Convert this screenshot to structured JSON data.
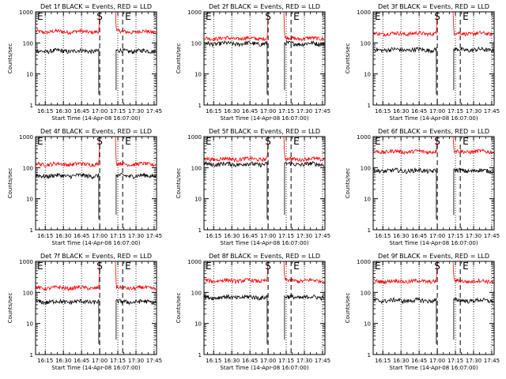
{
  "figure": {
    "y_axis_label": "Counts/sec",
    "x_axis_label": "Start Time (14-Apr-08 16:07:00)",
    "marker_start_label": "S",
    "marker_end_label": "E",
    "marker_left_label": "E"
  },
  "colors": {
    "events": "#000000",
    "lld": "#ff0000",
    "axes": "#000000"
  },
  "chart_data": [
    {
      "type": "line",
      "title": "Det 1f BLACK = Events, RED = LLD",
      "xlabel": "Start Time (14-Apr-08 16:07:00)",
      "ylabel": "Counts/sec",
      "yscale": "log",
      "ylim": [
        1,
        1000
      ],
      "xlim": [
        "16:07",
        "17:47"
      ],
      "x_ticks": [
        "16:15",
        "16:30",
        "16:45",
        "17:00",
        "17:15",
        "17:30",
        "17:45"
      ],
      "y_ticks": [
        "1",
        "10",
        "100",
        "1000"
      ],
      "dotted_lines": [
        "16:15",
        "16:30",
        "16:45",
        "17:15",
        "17:30",
        "17:45"
      ],
      "dashed_lines": [
        "17:00",
        "17:19"
      ],
      "series": [
        {
          "name": "BLACK = Events",
          "approx_level": 55,
          "color": "#000000"
        },
        {
          "name": "RED = LLD",
          "approx_level": 230,
          "color": "#ff0000"
        }
      ]
    },
    {
      "type": "line",
      "title": "Det 2f BLACK = Events, RED = LLD",
      "xlabel": "Start Time (14-Apr-08 16:07:00)",
      "ylabel": "Counts/sec",
      "yscale": "log",
      "ylim": [
        1,
        1000
      ],
      "xlim": [
        "16:07",
        "17:47"
      ],
      "x_ticks": [
        "16:15",
        "16:30",
        "16:45",
        "17:00",
        "17:15",
        "17:30",
        "17:45"
      ],
      "y_ticks": [
        "1",
        "10",
        "100",
        "1000"
      ],
      "dotted_lines": [
        "16:15",
        "16:30",
        "16:45",
        "17:15",
        "17:30",
        "17:45"
      ],
      "dashed_lines": [
        "17:00",
        "17:19"
      ],
      "series": [
        {
          "name": "BLACK = Events",
          "approx_level": 95,
          "color": "#000000"
        },
        {
          "name": "RED = LLD",
          "approx_level": 140,
          "color": "#ff0000"
        }
      ]
    },
    {
      "type": "line",
      "title": "Det 3f BLACK = Events, RED = LLD",
      "xlabel": "Start Time (14-Apr-08 16:07:00)",
      "ylabel": "Counts/sec",
      "yscale": "log",
      "ylim": [
        1,
        1000
      ],
      "xlim": [
        "16:07",
        "17:47"
      ],
      "x_ticks": [
        "16:15",
        "16:30",
        "16:45",
        "17:00",
        "17:15",
        "17:30",
        "17:45"
      ],
      "y_ticks": [
        "1",
        "10",
        "100",
        "1000"
      ],
      "dotted_lines": [
        "16:15",
        "16:30",
        "16:45",
        "17:15",
        "17:30",
        "17:45"
      ],
      "dashed_lines": [
        "17:00",
        "17:19"
      ],
      "series": [
        {
          "name": "BLACK = Events",
          "approx_level": 60,
          "color": "#000000"
        },
        {
          "name": "RED = LLD",
          "approx_level": 200,
          "color": "#ff0000"
        }
      ]
    },
    {
      "type": "line",
      "title": "Det 4f BLACK = Events, RED = LLD",
      "xlabel": "Start Time (14-Apr-08 16:07:00)",
      "ylabel": "Counts/sec",
      "yscale": "log",
      "ylim": [
        1,
        1000
      ],
      "xlim": [
        "16:07",
        "17:47"
      ],
      "x_ticks": [
        "16:15",
        "16:30",
        "16:45",
        "17:00",
        "17:15",
        "17:30",
        "17:45"
      ],
      "y_ticks": [
        "1",
        "10",
        "100",
        "1000"
      ],
      "dotted_lines": [
        "16:15",
        "16:30",
        "16:45",
        "17:15",
        "17:30",
        "17:45"
      ],
      "dashed_lines": [
        "17:00",
        "17:19"
      ],
      "series": [
        {
          "name": "BLACK = Events",
          "approx_level": 55,
          "color": "#000000"
        },
        {
          "name": "RED = LLD",
          "approx_level": 130,
          "color": "#ff0000"
        }
      ]
    },
    {
      "type": "line",
      "title": "Det 5f BLACK = Events, RED = LLD",
      "xlabel": "Start Time (14-Apr-08 16:07:00)",
      "ylabel": "Counts/sec",
      "yscale": "log",
      "ylim": [
        1,
        1000
      ],
      "xlim": [
        "16:07",
        "17:47"
      ],
      "x_ticks": [
        "16:15",
        "16:30",
        "16:45",
        "17:00",
        "17:15",
        "17:30",
        "17:45"
      ],
      "y_ticks": [
        "1",
        "10",
        "100",
        "1000"
      ],
      "dotted_lines": [
        "16:15",
        "16:30",
        "16:45",
        "17:15",
        "17:30",
        "17:45"
      ],
      "dashed_lines": [
        "17:00",
        "17:19"
      ],
      "series": [
        {
          "name": "BLACK = Events",
          "approx_level": 130,
          "color": "#000000"
        },
        {
          "name": "RED = LLD",
          "approx_level": 190,
          "color": "#ff0000"
        }
      ]
    },
    {
      "type": "line",
      "title": "Det 6f BLACK = Events, RED = LLD",
      "xlabel": "Start Time (14-Apr-08 16:07:00)",
      "ylabel": "Counts/sec",
      "yscale": "log",
      "ylim": [
        1,
        1000
      ],
      "xlim": [
        "16:07",
        "17:47"
      ],
      "x_ticks": [
        "16:15",
        "16:30",
        "16:45",
        "17:00",
        "17:15",
        "17:30",
        "17:45"
      ],
      "y_ticks": [
        "1",
        "10",
        "100",
        "1000"
      ],
      "dotted_lines": [
        "16:15",
        "16:30",
        "16:45",
        "17:15",
        "17:30",
        "17:45"
      ],
      "dashed_lines": [
        "17:00",
        "17:19"
      ],
      "series": [
        {
          "name": "BLACK = Events",
          "approx_level": 80,
          "color": "#000000"
        },
        {
          "name": "RED = LLD",
          "approx_level": 330,
          "color": "#ff0000"
        }
      ]
    },
    {
      "type": "line",
      "title": "Det 7f BLACK = Events, RED = LLD",
      "xlabel": "Start Time (14-Apr-08 16:07:00)",
      "ylabel": "Counts/sec",
      "yscale": "log",
      "ylim": [
        1,
        1000
      ],
      "xlim": [
        "16:07",
        "17:47"
      ],
      "x_ticks": [
        "16:15",
        "16:30",
        "16:45",
        "17:00",
        "17:15",
        "17:30",
        "17:45"
      ],
      "y_ticks": [
        "1",
        "10",
        "100",
        "1000"
      ],
      "dotted_lines": [
        "16:15",
        "16:30",
        "16:45",
        "17:15",
        "17:30",
        "17:45"
      ],
      "dashed_lines": [
        "17:00",
        "17:19"
      ],
      "series": [
        {
          "name": "BLACK = Events",
          "approx_level": 50,
          "color": "#000000"
        },
        {
          "name": "RED = LLD",
          "approx_level": 140,
          "color": "#ff0000"
        }
      ]
    },
    {
      "type": "line",
      "title": "Det 8f BLACK = Events, RED = LLD",
      "xlabel": "Start Time (14-Apr-08 16:07:00)",
      "ylabel": "Counts/sec",
      "yscale": "log",
      "ylim": [
        1,
        1000
      ],
      "xlim": [
        "16:07",
        "17:47"
      ],
      "x_ticks": [
        "16:15",
        "16:30",
        "16:45",
        "17:00",
        "17:15",
        "17:30",
        "17:45"
      ],
      "y_ticks": [
        "1",
        "10",
        "100",
        "1000"
      ],
      "dotted_lines": [
        "16:15",
        "16:30",
        "16:45",
        "17:15",
        "17:30",
        "17:45"
      ],
      "dashed_lines": [
        "17:00",
        "17:19"
      ],
      "series": [
        {
          "name": "BLACK = Events",
          "approx_level": 70,
          "color": "#000000"
        },
        {
          "name": "RED = LLD",
          "approx_level": 240,
          "color": "#ff0000"
        }
      ]
    },
    {
      "type": "line",
      "title": "Det 9f BLACK = Events, RED = LLD",
      "xlabel": "Start Time (14-Apr-08 16:07:00)",
      "ylabel": "Counts/sec",
      "yscale": "log",
      "ylim": [
        1,
        1000
      ],
      "xlim": [
        "16:07",
        "17:47"
      ],
      "x_ticks": [
        "16:15",
        "16:30",
        "16:45",
        "17:00",
        "17:15",
        "17:30",
        "17:45"
      ],
      "y_ticks": [
        "1",
        "10",
        "100",
        "1000"
      ],
      "dotted_lines": [
        "16:15",
        "16:30",
        "16:45",
        "17:15",
        "17:30",
        "17:45"
      ],
      "dashed_lines": [
        "17:00",
        "17:19"
      ],
      "series": [
        {
          "name": "BLACK = Events",
          "approx_level": 55,
          "color": "#000000"
        },
        {
          "name": "RED = LLD",
          "approx_level": 230,
          "color": "#ff0000"
        }
      ]
    }
  ]
}
